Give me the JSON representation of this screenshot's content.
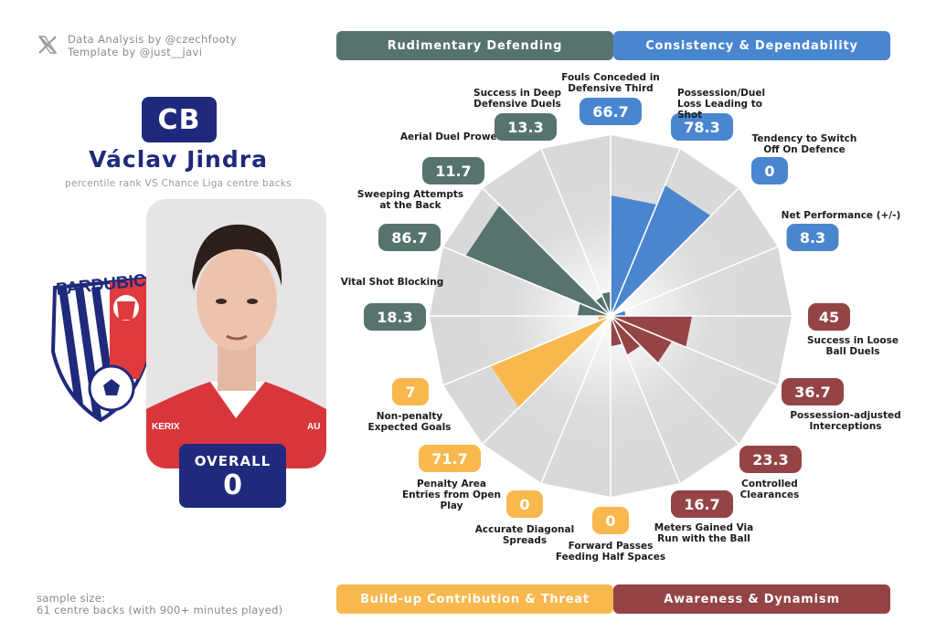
{
  "credits": {
    "line1": "Data Analysis by @czechfooty",
    "line2": "Template by @just__javi"
  },
  "player": {
    "position": "CB",
    "name": "Václav Jindra",
    "subtitle": "percentile rank VS Chance Liga centre backs",
    "overall_label": "OVERALL",
    "overall_value": "0",
    "club_logo_text": "PARDUBICE",
    "shirt_text_left": "KERIX",
    "shirt_text_right": "AU"
  },
  "sample": {
    "line1": "sample size:",
    "line2": "61 centre backs (with 900+ minutes played)"
  },
  "categories": {
    "top_left": "Rudimentary Defending",
    "top_right": "Consistency & Dependability",
    "bottom_left": "Build-up Contribution & Threat",
    "bottom_right": "Awareness & Dynamism"
  },
  "colors": {
    "defending": "#56736e",
    "consistency": "#4a86d0",
    "buildup": "#f8b84e",
    "awareness": "#944444",
    "navy": "#1f2a7c"
  },
  "chart_data": {
    "type": "radar",
    "max": 100,
    "metrics": [
      {
        "label": "Fouls Conceded in Defensive Third",
        "value": 66.7,
        "display": "66.7",
        "group": "consistency"
      },
      {
        "label": "Possession/Duel Loss Leading to Shot",
        "value": 78.3,
        "display": "78.3",
        "group": "consistency"
      },
      {
        "label": "Tendency to Switch Off On Defence",
        "value": 0,
        "display": "0",
        "group": "consistency"
      },
      {
        "label": "Net Performance (+/-)",
        "value": 8.3,
        "display": "8.3",
        "group": "consistency"
      },
      {
        "label": "Success in Loose Ball Duels",
        "value": 45,
        "display": "45",
        "group": "awareness"
      },
      {
        "label": "Possession-adjusted Interceptions",
        "value": 36.7,
        "display": "36.7",
        "group": "awareness"
      },
      {
        "label": "Controlled Clearances",
        "value": 23.3,
        "display": "23.3",
        "group": "awareness"
      },
      {
        "label": "Meters Gained Via Run with the Ball",
        "value": 16.7,
        "display": "16.7",
        "group": "awareness"
      },
      {
        "label": "Forward Passes Feeding Half Spaces",
        "value": 0,
        "display": "0",
        "group": "buildup"
      },
      {
        "label": "Accurate Diagonal Spreads",
        "value": 0,
        "display": "0",
        "group": "buildup"
      },
      {
        "label": "Penalty Area Entries from Open Play",
        "value": 71.7,
        "display": "71.7",
        "group": "buildup"
      },
      {
        "label": "Non-penalty Expected Goals",
        "value": 7,
        "display": "7",
        "group": "buildup"
      },
      {
        "label": "Vital Shot Blocking",
        "value": 18.3,
        "display": "18.3",
        "group": "defending"
      },
      {
        "label": "Sweeping Attempts at the Back",
        "value": 86.7,
        "display": "86.7",
        "group": "defending"
      },
      {
        "label": "Aerial Duel Prowess",
        "value": 11.7,
        "display": "11.7",
        "group": "defending"
      },
      {
        "label": "Success in Deep Defensive Duels",
        "value": 13.3,
        "display": "13.3",
        "group": "defending"
      }
    ]
  }
}
